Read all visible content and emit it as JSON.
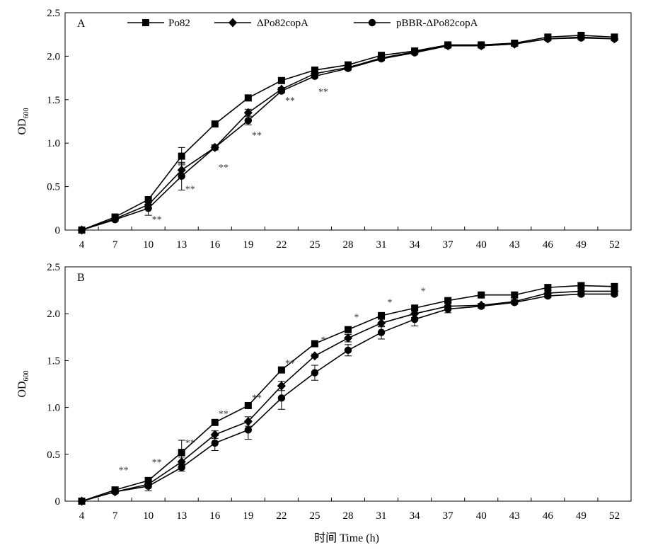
{
  "chart_data": {
    "type": "line",
    "x_label": "时间 Time (h)",
    "y_label": {
      "prefix": "OD",
      "subscript": "600"
    },
    "x": [
      4,
      7,
      10,
      13,
      16,
      19,
      22,
      25,
      28,
      31,
      34,
      37,
      40,
      43,
      46,
      49,
      52
    ],
    "ylim": [
      0,
      2.5
    ],
    "y_ticks": [
      0,
      0.5,
      1.0,
      1.5,
      2.0,
      2.5
    ],
    "y_tick_labels": [
      "0",
      "0.5",
      "1.0",
      "1.5",
      "2.0",
      "2.5"
    ],
    "legend": [
      {
        "name": "Po82",
        "marker": "square"
      },
      {
        "name": "ΔPo82copA",
        "marker": "diamond"
      },
      {
        "name": "pBBR-ΔPo82copA",
        "marker": "circle"
      }
    ],
    "panels": [
      {
        "label": "A",
        "series": [
          {
            "name": "Po82",
            "marker": "square",
            "values": [
              0,
              0.15,
              0.35,
              0.85,
              1.22,
              1.52,
              1.72,
              1.84,
              1.9,
              2.01,
              2.06,
              2.13,
              2.13,
              2.15,
              2.22,
              2.24,
              2.22
            ],
            "errors": [
              0,
              0.02,
              0.03,
              0.1,
              0.02,
              0.02,
              0.02,
              0.02,
              0.02,
              0.02,
              0.02,
              0.02,
              0.02,
              0.02,
              0.02,
              0.02,
              0.02
            ]
          },
          {
            "name": "ΔPo82copA",
            "marker": "diamond",
            "values": [
              0,
              0.13,
              0.29,
              0.69,
              0.95,
              1.35,
              1.62,
              1.8,
              1.87,
              1.98,
              2.05,
              2.12,
              2.12,
              2.14,
              2.2,
              2.22,
              2.2
            ],
            "errors": [
              0,
              0.02,
              0.04,
              0.08,
              0.02,
              0.04,
              0.02,
              0.02,
              0.02,
              0.02,
              0.02,
              0.02,
              0.02,
              0.02,
              0.02,
              0.02,
              0.02
            ]
          },
          {
            "name": "pBBR-ΔPo82copA",
            "marker": "circle",
            "values": [
              0,
              0.12,
              0.25,
              0.62,
              0.95,
              1.26,
              1.6,
              1.77,
              1.86,
              1.97,
              2.04,
              2.12,
              2.12,
              2.14,
              2.2,
              2.21,
              2.2
            ],
            "errors": [
              0,
              0.02,
              0.08,
              0.16,
              0.03,
              0.05,
              0.02,
              0.02,
              0.02,
              0.02,
              0.02,
              0.02,
              0.02,
              0.02,
              0.02,
              0.02,
              0.02
            ]
          }
        ],
        "annotations": [
          {
            "x": 10,
            "y": 0.15,
            "text": "**"
          },
          {
            "x": 13,
            "y": 0.5,
            "text": "**"
          },
          {
            "x": 16,
            "y": 0.75,
            "text": "**"
          },
          {
            "x": 19,
            "y": 1.12,
            "text": "**"
          },
          {
            "x": 22,
            "y": 1.52,
            "text": "**"
          },
          {
            "x": 25,
            "y": 1.62,
            "text": "**"
          }
        ]
      },
      {
        "label": "B",
        "series": [
          {
            "name": "Po82",
            "marker": "square",
            "values": [
              0,
              0.12,
              0.22,
              0.52,
              0.84,
              1.02,
              1.4,
              1.68,
              1.83,
              1.98,
              2.06,
              2.14,
              2.2,
              2.2,
              2.28,
              2.3,
              2.29
            ],
            "errors": [
              0,
              0.02,
              0.03,
              0.13,
              0.02,
              0.02,
              0.02,
              0.02,
              0.02,
              0.02,
              0.02,
              0.02,
              0.02,
              0.03,
              0.03,
              0.03,
              0.03
            ]
          },
          {
            "name": "ΔPo82copA",
            "marker": "diamond",
            "values": [
              0,
              0.1,
              0.18,
              0.42,
              0.71,
              0.85,
              1.23,
              1.55,
              1.74,
              1.9,
              2.0,
              2.08,
              2.09,
              2.13,
              2.22,
              2.24,
              2.24
            ],
            "errors": [
              0,
              0.02,
              0.03,
              0.05,
              0.04,
              0.05,
              0.05,
              0.02,
              0.04,
              0.04,
              0.04,
              0.04,
              0.02,
              0.02,
              0.02,
              0.02,
              0.02
            ]
          },
          {
            "name": "pBBR-ΔPo82copA",
            "marker": "circle",
            "values": [
              0,
              0.1,
              0.16,
              0.36,
              0.62,
              0.76,
              1.1,
              1.37,
              1.61,
              1.8,
              1.94,
              2.05,
              2.08,
              2.12,
              2.19,
              2.21,
              2.21
            ],
            "errors": [
              0,
              0.02,
              0.05,
              0.04,
              0.08,
              0.1,
              0.12,
              0.08,
              0.06,
              0.07,
              0.07,
              0.04,
              0.02,
              0.02,
              0.02,
              0.02,
              0.02
            ]
          }
        ],
        "annotations": [
          {
            "x": 7,
            "y": 0.36,
            "text": "**"
          },
          {
            "x": 10,
            "y": 0.44,
            "text": "**"
          },
          {
            "x": 13,
            "y": 0.65,
            "text": "**"
          },
          {
            "x": 16,
            "y": 0.96,
            "text": "**"
          },
          {
            "x": 19,
            "y": 1.13,
            "text": "**"
          },
          {
            "x": 22,
            "y": 1.5,
            "text": "**"
          },
          {
            "x": 25,
            "y": 1.75,
            "text": "*"
          },
          {
            "x": 28,
            "y": 1.99,
            "text": "*"
          },
          {
            "x": 31,
            "y": 2.15,
            "text": "*"
          },
          {
            "x": 34,
            "y": 2.27,
            "text": "*"
          }
        ]
      }
    ]
  }
}
